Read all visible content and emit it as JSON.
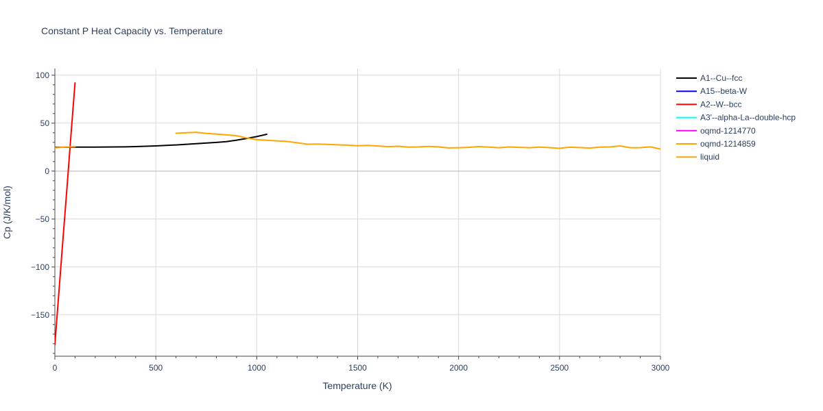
{
  "chart_data": {
    "type": "line",
    "title": "Constant P Heat Capacity vs. Temperature",
    "xlabel": "Temperature (K)",
    "ylabel": "Cp (J/K/mol)",
    "xlim": [
      0,
      3000
    ],
    "ylim": [
      -193,
      107
    ],
    "x_ticks": [
      0,
      500,
      1000,
      1500,
      2000,
      2500,
      3000
    ],
    "x_tick_labels": [
      "0",
      "500",
      "1000",
      "1500",
      "2000",
      "2500",
      "3000"
    ],
    "y_ticks": [
      -150,
      -100,
      -50,
      0,
      50,
      100
    ],
    "y_tick_labels": [
      "−150",
      "−100",
      "−50",
      "0",
      "50",
      "100"
    ],
    "grid": true,
    "legend_position": "top-right",
    "series": [
      {
        "name": "A1--Cu--fcc",
        "color": "#000000",
        "x": [
          0,
          50,
          100,
          200,
          300,
          350,
          400,
          500,
          600,
          700,
          800,
          850,
          900,
          950,
          1000,
          1050
        ],
        "y": [
          24.8,
          24.9,
          25.0,
          25.1,
          25.2,
          25.3,
          25.6,
          26.3,
          27.3,
          28.6,
          29.9,
          30.8,
          32.3,
          34.1,
          36.0,
          38.4
        ]
      },
      {
        "name": "A15--beta-W",
        "color": "#0000ff",
        "x": [],
        "y": []
      },
      {
        "name": "A2--W--bcc",
        "color": "#ff0000",
        "x": [
          0,
          20,
          40,
          60,
          80,
          100
        ],
        "y": [
          -181,
          -126,
          -71,
          -17,
          38,
          92
        ]
      },
      {
        "name": "A3'--alpha-La--double-hcp",
        "color": "#00ffff",
        "x": [],
        "y": []
      },
      {
        "name": "oqmd-1214770",
        "color": "#ff00ff",
        "x": [],
        "y": []
      },
      {
        "name": "oqmd-1214859",
        "color": "#ffa500",
        "x": [
          0,
          50,
          100
        ],
        "y": [
          24.3,
          25.1,
          25.6
        ]
      },
      {
        "name": "liquid",
        "color": "#ffa500",
        "x": [
          600,
          700,
          750,
          800,
          850,
          900,
          950,
          1000,
          1050,
          1100,
          1150,
          1200,
          1250,
          1300,
          1350,
          1400,
          1450,
          1500,
          1550,
          1600,
          1650,
          1700,
          1750,
          1800,
          1850,
          1900,
          1950,
          2000,
          2050,
          2100,
          2150,
          2200,
          2250,
          2300,
          2350,
          2400,
          2450,
          2500,
          2550,
          2600,
          2650,
          2700,
          2750,
          2800,
          2850,
          2900,
          2950,
          3000
        ],
        "y": [
          39.5,
          40.5,
          39.3,
          38.6,
          37.8,
          36.9,
          34.6,
          32.8,
          32.2,
          31.6,
          30.9,
          29.6,
          28.1,
          28.2,
          27.9,
          27.4,
          27.1,
          26.5,
          26.8,
          26.2,
          25.5,
          25.9,
          25.1,
          25.2,
          25.8,
          25.3,
          24.2,
          24.4,
          24.8,
          25.6,
          25.0,
          24.4,
          25.2,
          24.8,
          24.4,
          25.0,
          24.5,
          23.8,
          24.9,
          24.6,
          24.1,
          25.1,
          25.2,
          26.3,
          24.4,
          24.5,
          25.3,
          23.1
        ]
      }
    ]
  }
}
